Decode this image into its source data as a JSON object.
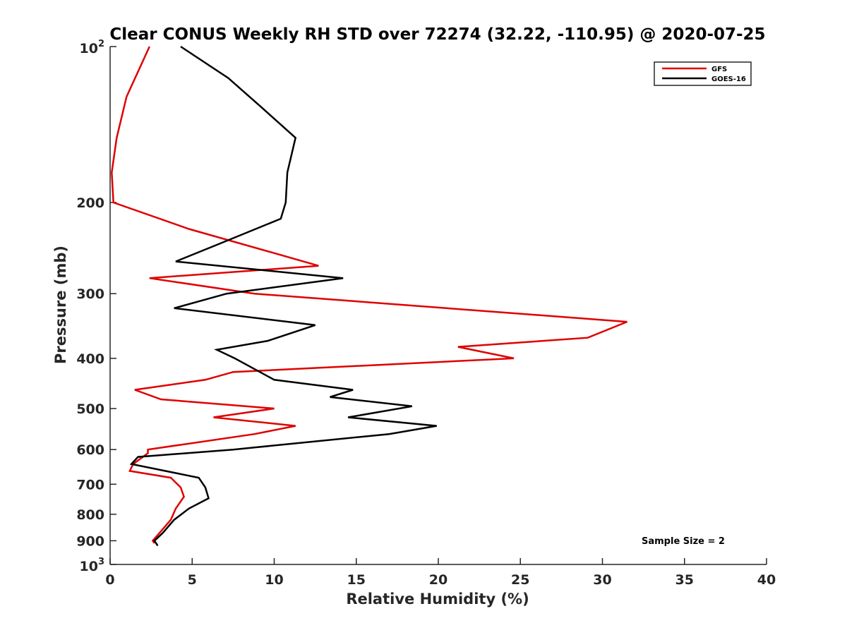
{
  "chart_data": {
    "type": "line",
    "title": "Clear CONUS Weekly RH STD over 72274 (32.22, -110.95) @ 2020-07-25",
    "xlabel": "Relative Humidity (%)",
    "ylabel": "Pressure (mb)",
    "xlim": [
      0,
      40
    ],
    "ylim": [
      100,
      1000
    ],
    "y_scale": "log",
    "y_reversed": true,
    "x_ticks": [
      "0",
      "5",
      "10",
      "15",
      "20",
      "25",
      "30",
      "35",
      "40"
    ],
    "y_ticks": [
      {
        "value": 100,
        "base": "10",
        "exp": "2"
      },
      {
        "value": 200,
        "label": "200"
      },
      {
        "value": 300,
        "label": "300"
      },
      {
        "value": 400,
        "label": "400"
      },
      {
        "value": 500,
        "label": "500"
      },
      {
        "value": 600,
        "label": "600"
      },
      {
        "value": 700,
        "label": "700"
      },
      {
        "value": 800,
        "label": "800"
      },
      {
        "value": 900,
        "label": "900"
      },
      {
        "value": 1000,
        "base": "10",
        "exp": "3"
      }
    ],
    "legend_position": "top-right",
    "annotation": "Sample Size = 2",
    "grid": false,
    "series": [
      {
        "name": "GFS",
        "color": "#e00000",
        "points": [
          [
            2.4,
            100
          ],
          [
            1.0,
            125
          ],
          [
            0.4,
            150
          ],
          [
            0.1,
            175
          ],
          [
            0.2,
            200
          ],
          [
            4.8,
            225
          ],
          [
            9.9,
            250
          ],
          [
            12.7,
            265
          ],
          [
            2.4,
            280
          ],
          [
            8.8,
            300
          ],
          [
            31.5,
            340
          ],
          [
            29.1,
            365
          ],
          [
            21.2,
            380
          ],
          [
            24.6,
            400
          ],
          [
            7.5,
            425
          ],
          [
            5.8,
            440
          ],
          [
            1.5,
            460
          ],
          [
            3.1,
            480
          ],
          [
            10.0,
            500
          ],
          [
            6.3,
            520
          ],
          [
            11.3,
            540
          ],
          [
            8.8,
            560
          ],
          [
            2.3,
            600
          ],
          [
            2.3,
            610
          ],
          [
            1.4,
            640
          ],
          [
            1.2,
            660
          ],
          [
            3.7,
            680
          ],
          [
            4.3,
            710
          ],
          [
            4.5,
            740
          ],
          [
            4.0,
            780
          ],
          [
            3.7,
            820
          ],
          [
            3.0,
            870
          ],
          [
            2.6,
            900
          ],
          [
            2.7,
            910
          ]
        ]
      },
      {
        "name": "GOES-16",
        "color": "#000000",
        "points": [
          [
            4.3,
            100
          ],
          [
            7.2,
            115
          ],
          [
            9.1,
            130
          ],
          [
            11.3,
            150
          ],
          [
            10.8,
            175
          ],
          [
            10.7,
            200
          ],
          [
            10.4,
            215
          ],
          [
            6.7,
            240
          ],
          [
            4.0,
            260
          ],
          [
            14.2,
            280
          ],
          [
            7.1,
            300
          ],
          [
            3.9,
            320
          ],
          [
            12.5,
            345
          ],
          [
            9.6,
            370
          ],
          [
            6.5,
            385
          ],
          [
            7.6,
            400
          ],
          [
            10.0,
            440
          ],
          [
            14.8,
            460
          ],
          [
            13.4,
            475
          ],
          [
            18.4,
            495
          ],
          [
            14.5,
            520
          ],
          [
            19.9,
            540
          ],
          [
            17.0,
            560
          ],
          [
            7.5,
            600
          ],
          [
            1.7,
            620
          ],
          [
            1.3,
            640
          ],
          [
            5.4,
            680
          ],
          [
            5.8,
            710
          ],
          [
            6.0,
            745
          ],
          [
            4.8,
            780
          ],
          [
            3.9,
            820
          ],
          [
            3.2,
            870
          ],
          [
            2.7,
            900
          ],
          [
            2.9,
            920
          ]
        ]
      }
    ]
  }
}
